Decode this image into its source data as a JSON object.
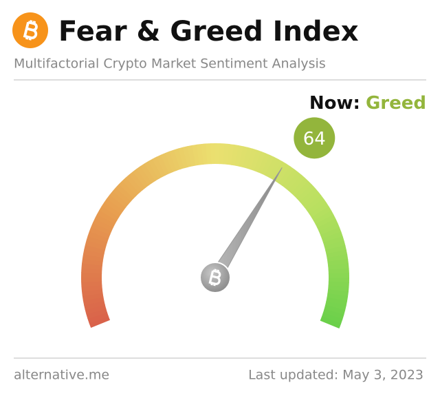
{
  "chart_data": {
    "type": "gauge",
    "title": "Fear & Greed Index",
    "subtitle": "Multifactorial Crypto Market Sentiment Analysis",
    "now_label": "Now:",
    "classification": "Greed",
    "value": 64,
    "ylim": [
      0,
      100
    ],
    "color": "#93b53c",
    "source": "alternative.me",
    "last_updated": "Last updated: May 3, 2023"
  }
}
